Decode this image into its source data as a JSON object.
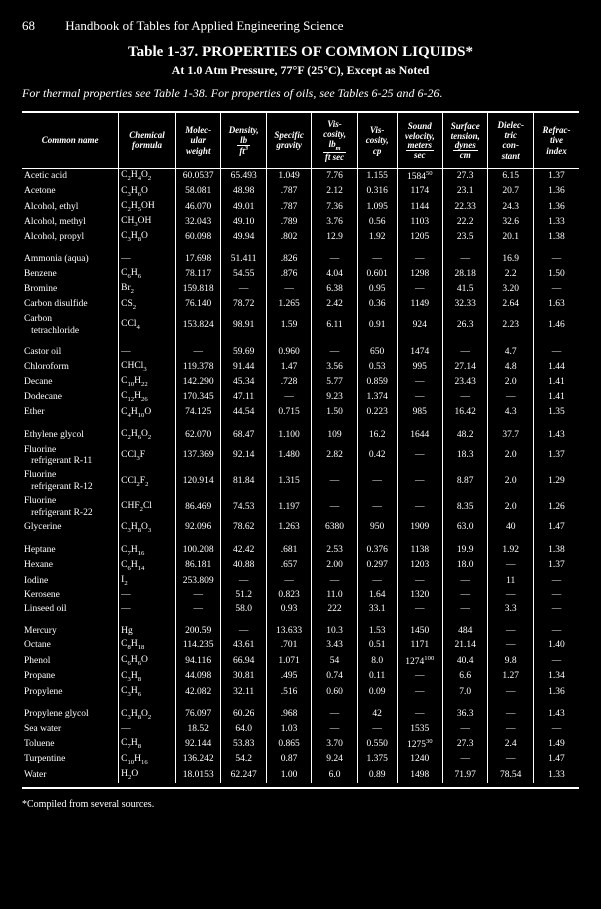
{
  "page": {
    "number": "68",
    "book_title": "Handbook of Tables for Applied Engineering Science",
    "table_title": "Table 1-37.  PROPERTIES OF COMMON LIQUIDS*",
    "subtitle": "At 1.0 Atm Pressure, 77°F (25°C), Except as Noted",
    "note": "For thermal properties see Table 1-38. For properties of oils, see Tables 6-25 and 6-26.",
    "footnote": "*Compiled from several sources."
  },
  "columns_widths": [
    "17%",
    "10%",
    "8%",
    "8%",
    "8%",
    "8%",
    "7%",
    "8%",
    "8%",
    "8%",
    "8%"
  ],
  "headers": [
    "Common name",
    "Chemical formula",
    "Molec-<br>ular<br>weight",
    "Density,<br><span class='frac'><span class='num'>lb</span><span class='den'>ft<sup>3</sup></span></span>",
    "Specific<br>gravity",
    "Vis-<br>cosity,<br><span class='frac'><span class='num'>lb<sub>m</sub></span><span class='den'>ft sec</span></span>",
    "Vis-<br>cosity,<br>cp",
    "Sound<br>velocity,<br><span class='frac'><span class='num'>meters</span><span class='den'>sec</span></span>",
    "Surface<br>tension,<br><span class='frac'><span class='num'>dynes</span><span class='den'>cm</span></span>",
    "Dielec-<br>tric<br>con-<br>stant",
    "Refrac-<br>tive<br>index"
  ],
  "groups": [
    [
      [
        "Acetic acid",
        "C<sub>2</sub>H<sub>4</sub>O<sub>2</sub>",
        "60.0537",
        "65.493",
        "1.049",
        "7.76",
        "1.155",
        "1584<sup>50</sup>",
        "27.3",
        "6.15",
        "1.37"
      ],
      [
        "Acetone",
        "C<sub>3</sub>H<sub>6</sub>O",
        "58.081",
        "48.98",
        ".787",
        "2.12",
        "0.316",
        "1174",
        "23.1",
        "20.7",
        "1.36"
      ],
      [
        "Alcohol, ethyl",
        "C<sub>2</sub>H<sub>5</sub>OH",
        "46.070",
        "49.01",
        ".787",
        "7.36",
        "1.095",
        "1144",
        "22.33",
        "24.3",
        "1.36"
      ],
      [
        "Alcohol, methyl",
        "CH<sub>3</sub>OH",
        "32.043",
        "49.10",
        ".789",
        "3.76",
        "0.56",
        "1103",
        "22.2",
        "32.6",
        "1.33"
      ],
      [
        "Alcohol, propyl",
        "C<sub>3</sub>H<sub>8</sub>O",
        "60.098",
        "49.94",
        ".802",
        "12.9",
        "1.92",
        "1205",
        "23.5",
        "20.1",
        "1.38"
      ]
    ],
    [
      [
        "Ammonia (aqua)",
        "—",
        "17.698",
        "51.411",
        ".826",
        "—",
        "—",
        "—",
        "—",
        "16.9",
        "—"
      ],
      [
        "Benzene",
        "C<sub>6</sub>H<sub>6</sub>",
        "78.117",
        "54.55",
        ".876",
        "4.04",
        "0.601",
        "1298",
        "28.18",
        "2.2",
        "1.50"
      ],
      [
        "Bromine",
        "Br<sub>2</sub>",
        "159.818",
        "—",
        "—",
        "6.38",
        "0.95",
        "—",
        "41.5",
        "3.20",
        "—"
      ],
      [
        "Carbon disulfide",
        "CS<sub>2</sub>",
        "76.140",
        "78.72",
        "1.265",
        "2.42",
        "0.36",
        "1149",
        "32.33",
        "2.64",
        "1.63"
      ],
      [
        "Carbon<br>&nbsp;&nbsp;&nbsp;tetrachloride",
        "CCl<sub>4</sub>",
        "153.824",
        "98.91",
        "1.59",
        "6.11",
        "0.91",
        "924",
        "26.3",
        "2.23",
        "1.46"
      ]
    ],
    [
      [
        "Castor oil",
        "—",
        "—",
        "59.69",
        "0.960",
        "—",
        "650",
        "1474",
        "—",
        "4.7",
        "—"
      ],
      [
        "Chloroform",
        "CHCl<sub>3</sub>",
        "119.378",
        "91.44",
        "1.47",
        "3.56",
        "0.53",
        "995",
        "27.14",
        "4.8",
        "1.44"
      ],
      [
        "Decane",
        "C<sub>10</sub>H<sub>22</sub>",
        "142.290",
        "45.34",
        ".728",
        "5.77",
        "0.859",
        "—",
        "23.43",
        "2.0",
        "1.41"
      ],
      [
        "Dodecane",
        "C<sub>12</sub>H<sub>26</sub>",
        "170.345",
        "47.11",
        "—",
        "9.23",
        "1.374",
        "—",
        "—",
        "—",
        "1.41"
      ],
      [
        "Ether",
        "C<sub>4</sub>H<sub>10</sub>O",
        "74.125",
        "44.54",
        "0.715",
        "1.50",
        "0.223",
        "985",
        "16.42",
        "4.3",
        "1.35"
      ]
    ],
    [
      [
        "Ethylene glycol",
        "C<sub>2</sub>H<sub>6</sub>O<sub>2</sub>",
        "62.070",
        "68.47",
        "1.100",
        "109",
        "16.2",
        "1644",
        "48.2",
        "37.7",
        "1.43"
      ],
      [
        "Fluorine<br>&nbsp;&nbsp;&nbsp;refrigerant R-11",
        "CCl<sub>3</sub>F",
        "137.369",
        "92.14",
        "1.480",
        "2.82",
        "0.42",
        "—",
        "18.3",
        "2.0",
        "1.37"
      ],
      [
        "Fluorine<br>&nbsp;&nbsp;&nbsp;refrigerant R-12",
        "CCl<sub>2</sub>F<sub>2</sub>",
        "120.914",
        "81.84",
        "1.315",
        "—",
        "—",
        "—",
        "8.87",
        "2.0",
        "1.29"
      ],
      [
        "Fluorine<br>&nbsp;&nbsp;&nbsp;refrigerant R-22",
        "CHF<sub>2</sub>Cl",
        "86.469",
        "74.53",
        "1.197",
        "—",
        "—",
        "—",
        "8.35",
        "2.0",
        "1.26"
      ],
      [
        "Glycerine",
        "C<sub>3</sub>H<sub>8</sub>O<sub>3</sub>",
        "92.096",
        "78.62",
        "1.263",
        "6380",
        "950",
        "1909",
        "63.0",
        "40",
        "1.47"
      ]
    ],
    [
      [
        "Heptane",
        "C<sub>7</sub>H<sub>16</sub>",
        "100.208",
        "42.42",
        ".681",
        "2.53",
        "0.376",
        "1138",
        "19.9",
        "1.92",
        "1.38"
      ],
      [
        "Hexane",
        "C<sub>6</sub>H<sub>14</sub>",
        "86.181",
        "40.88",
        ".657",
        "2.00",
        "0.297",
        "1203",
        "18.0",
        "—",
        "1.37"
      ],
      [
        "Iodine",
        "I<sub>2</sub>",
        "253.809",
        "—",
        "—",
        "—",
        "—",
        "—",
        "—",
        "11",
        "—"
      ],
      [
        "Kerosene",
        "—",
        "—",
        "51.2",
        "0.823",
        "11.0",
        "1.64",
        "1320",
        "—",
        "—",
        "—"
      ],
      [
        "Linseed oil",
        "—",
        "—",
        "58.0",
        "0.93",
        "222",
        "33.1",
        "—",
        "—",
        "3.3",
        "—"
      ]
    ],
    [
      [
        "Mercury",
        "Hg",
        "200.59",
        "—",
        "13.633",
        "10.3",
        "1.53",
        "1450",
        "484",
        "—",
        "—"
      ],
      [
        "Octane",
        "C<sub>8</sub>H<sub>18</sub>",
        "114.235",
        "43.61",
        ".701",
        "3.43",
        "0.51",
        "1171",
        "21.14",
        "—",
        "1.40"
      ],
      [
        "Phenol",
        "C<sub>6</sub>H<sub>6</sub>O",
        "94.116",
        "66.94",
        "1.071",
        "54",
        "8.0",
        "1274<sup>100</sup>",
        "40.4",
        "9.8",
        "—"
      ],
      [
        "Propane",
        "C<sub>3</sub>H<sub>8</sub>",
        "44.098",
        "30.81",
        ".495",
        "0.74",
        "0.11",
        "—",
        "6.6",
        "1.27",
        "1.34"
      ],
      [
        "Propylene",
        "C<sub>3</sub>H<sub>6</sub>",
        "42.082",
        "32.11",
        ".516",
        "0.60",
        "0.09",
        "—",
        "7.0",
        "—",
        "1.36"
      ]
    ],
    [
      [
        "Propylene glycol",
        "C<sub>3</sub>H<sub>8</sub>O<sub>2</sub>",
        "76.097",
        "60.26",
        ".968",
        "—",
        "42",
        "—",
        "36.3",
        "—",
        "1.43"
      ],
      [
        "Sea water",
        "—",
        "18.52",
        "64.0",
        "1.03",
        "—",
        "—",
        "1535",
        "—",
        "—",
        "—"
      ],
      [
        "Toluene",
        "C<sub>7</sub>H<sub>8</sub>",
        "92.144",
        "53.83",
        "0.865",
        "3.70",
        "0.550",
        "1275<sup>30</sup>",
        "27.3",
        "2.4",
        "1.49"
      ],
      [
        "Turpentine",
        "C<sub>10</sub>H<sub>16</sub>",
        "136.242",
        "54.2",
        "0.87",
        "9.24",
        "1.375",
        "1240",
        "—",
        "—",
        "1.47"
      ],
      [
        "Water",
        "H<sub>2</sub>O",
        "18.0153",
        "62.247",
        "1.00",
        "6.0",
        "0.89",
        "1498",
        "71.97",
        "78.54",
        "1.33"
      ]
    ]
  ]
}
